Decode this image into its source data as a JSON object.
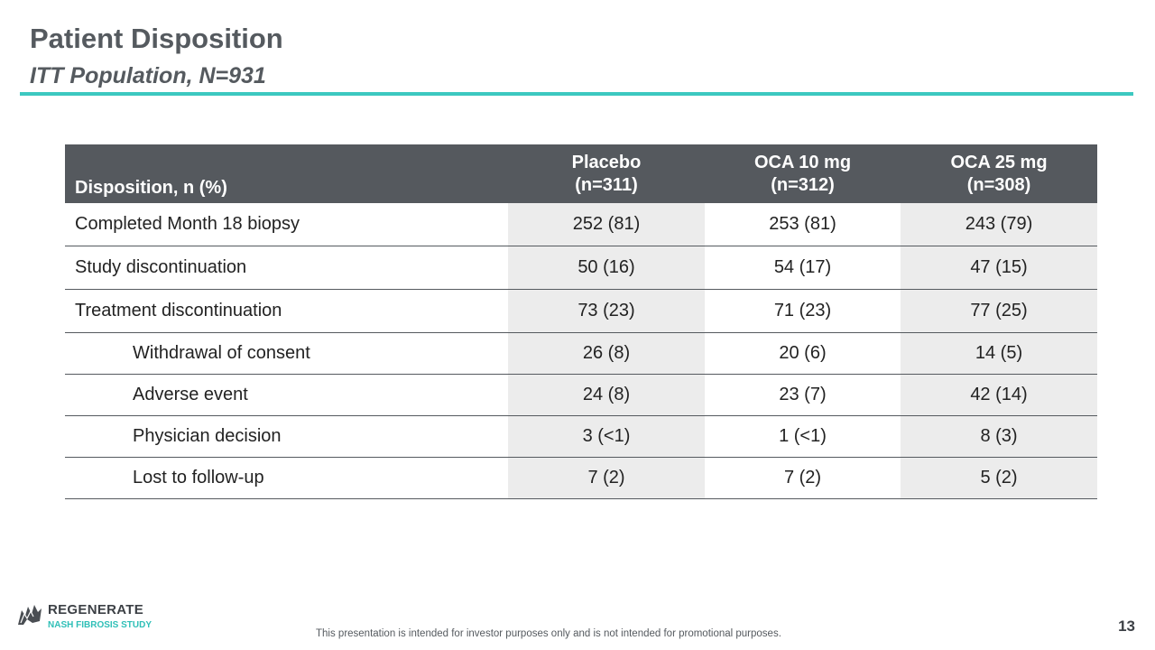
{
  "slide": {
    "title": "Patient Disposition",
    "subtitle": "ITT Population, N=931",
    "accent_color": "#3cc8c0",
    "page_number": "13",
    "disclaimer": "This presentation is intended for investor purposes only and is not intended for promotional purposes."
  },
  "logo": {
    "name": "REGENERATE",
    "tagline": "NASH FIBROSIS STUDY",
    "icon": "brand-mark-icon"
  },
  "table": {
    "header": {
      "label": "Disposition, n (%)",
      "columns": [
        {
          "name": "Placebo",
          "n": "(n=311)"
        },
        {
          "name": "OCA 10 mg",
          "n": "(n=312)"
        },
        {
          "name": "OCA 25 mg",
          "n": "(n=308)"
        }
      ]
    },
    "rows": [
      {
        "label": "Completed Month 18 biopsy",
        "values": [
          "252 (81)",
          "253 (81)",
          "243 (79)"
        ]
      },
      {
        "label": "Study discontinuation",
        "values": [
          "50 (16)",
          "54 (17)",
          "47 (15)"
        ]
      },
      {
        "label": "Treatment discontinuation",
        "values": [
          "73 (23)",
          "71 (23)",
          "77 (25)"
        ]
      },
      {
        "label": "Withdrawal of consent",
        "values": [
          "26 (8)",
          "20 (6)",
          "14 (5)"
        ]
      },
      {
        "label": "Adverse event",
        "values": [
          "24 (8)",
          "23 (7)",
          "42 (14)"
        ]
      },
      {
        "label": "Physician decision",
        "values": [
          "3 (<1)",
          "1 (<1)",
          "8 (3)"
        ]
      },
      {
        "label": "Lost to follow-up",
        "values": [
          "7 (2)",
          "7 (2)",
          "5 (2)"
        ]
      }
    ]
  }
}
